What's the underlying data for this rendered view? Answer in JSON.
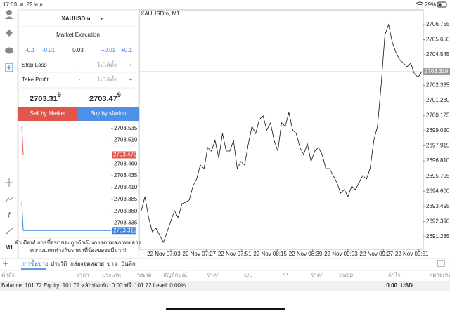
{
  "status_bar": {
    "time": "17:03",
    "date": "ศ. 22 พ.ย.",
    "battery": "29%"
  },
  "sidebar": {
    "timeframe": "M1"
  },
  "order_panel": {
    "symbol": "XAUUSDm",
    "execution": "Market Execution",
    "volume_steps": [
      "-0.1",
      "-0.01",
      "0.03",
      "+0.01",
      "+0.1"
    ],
    "stop_loss": {
      "label": "Stop Loss",
      "minus": "-",
      "value": "ไม่ได้ตั้ง",
      "plus": "+"
    },
    "take_profit": {
      "label": "Take Profit",
      "minus": "-",
      "value": "ไม่ได้ตั้ง",
      "plus": "+"
    },
    "bid": {
      "main": "2703.31",
      "last": "9"
    },
    "ask": {
      "main": "2703.47",
      "last": "9"
    },
    "sell_button": "Sell by Market",
    "buy_button": "Buy by Market",
    "warning": [
      "คำเตือน! การซื้อขายจะถูกดำเนินการตามสภาพตลาด",
      "ความแตกต่างกับราคาที่ร้องขอจะมีมาก!"
    ]
  },
  "chart_data": [
    {
      "type": "line",
      "title": "XAUUSDm, M1",
      "color": "#111111",
      "x": [
        -20,
        -17.5,
        -15,
        -12.5,
        -10,
        -7.5,
        -5,
        -2.5,
        0,
        2.5,
        5,
        7.5,
        10,
        12.5,
        15,
        17.5,
        20,
        22.5,
        25,
        27.5,
        30,
        32.5,
        35,
        37.5,
        40,
        42.5,
        45,
        47.5,
        50,
        52.5,
        55,
        57.5,
        60,
        62.5,
        65,
        67.5,
        70,
        72.5,
        75,
        77.5,
        80,
        82.5,
        85,
        87.5,
        90,
        92.5,
        95,
        97.5,
        100,
        102.5,
        105,
        107.5,
        110,
        112.5,
        115,
        117.5,
        120,
        122.5,
        125,
        127.5,
        130,
        132.5,
        135,
        137.5,
        140,
        142.5,
        145,
        147.5,
        150,
        152.5,
        155,
        157.5,
        160,
        162.5,
        165,
        167.5,
        170
      ],
      "values": [
        2693.18,
        2694.2,
        2692.67,
        2691.64,
        2691.9,
        2691.39,
        2690.87,
        2691.64,
        2692.41,
        2693.18,
        2692.67,
        2693.69,
        2693.79,
        2693.95,
        2694.97,
        2695.49,
        2696.51,
        2696.25,
        2697.79,
        2697.53,
        2698.3,
        2697.02,
        2698.81,
        2697.53,
        2697.53,
        2698.3,
        2696.25,
        2696.77,
        2696.51,
        2698.05,
        2699.33,
        2698.81,
        2699.84,
        2700.1,
        2699.07,
        2699.58,
        2698.3,
        2697.53,
        2699.58,
        2699.33,
        2700.35,
        2699.07,
        2698.81,
        2697.79,
        2697.28,
        2698.05,
        2696.77,
        2697.53,
        2697.79,
        2697.28,
        2696.25,
        2696.25,
        2695.74,
        2695.23,
        2694.46,
        2694.72,
        2694.2,
        2694.97,
        2694.72,
        2695.23,
        2695.74,
        2695.49,
        2696.25,
        2698.3,
        2699.33,
        2702.4,
        2705.99,
        2706.76,
        2705.47,
        2704.71,
        2704.19,
        2703.94,
        2703.68,
        2703.94,
        2703.17,
        2702.91,
        2703.319
      ],
      "xlim": [
        -21.4,
        171
      ],
      "xticks": [
        {
          "value": 0,
          "label": "22 Nov 07:03"
        },
        {
          "value": 24,
          "label": "22 Nov 07:27"
        },
        {
          "value": 48,
          "label": "22 Nov 07:51"
        },
        {
          "value": 72,
          "label": "22 Nov 08:15"
        },
        {
          "value": 96,
          "label": "22 Nov 08:39"
        },
        {
          "value": 120,
          "label": "22 Nov 09:03"
        },
        {
          "value": 144,
          "label": "22 Nov 09:27"
        },
        {
          "value": 168,
          "label": "22 Nov 09:51"
        }
      ],
      "ylim": [
        2690.36,
        2707.83
      ],
      "yticks": [
        2706.755,
        {
          "value": 2705.65,
          "label": "2705.650"
        },
        2704.545,
        2702.335,
        {
          "value": 2701.23,
          "label": "2701.230"
        },
        2700.125,
        {
          "value": 2699.02,
          "label": "2699.020"
        },
        2697.915,
        {
          "value": 2696.81,
          "label": "2696.810"
        },
        2695.705,
        {
          "value": 2694.6,
          "label": "2694.600"
        },
        2693.495,
        {
          "value": 2692.39,
          "label": "2692.390"
        },
        2691.285
      ]
    },
    {
      "type": "line",
      "series": [
        {
          "color": "#e0564c",
          "values": [
            2703.539,
            2703.479
          ]
        },
        {
          "color": "#3d7fe0",
          "values": [
            2703.38,
            2703.319
          ]
        }
      ],
      "ylim": [
        2703.309,
        2703.551
      ],
      "yticks": [
        2703.535,
        {
          "value": 2703.51,
          "label": "2703.510"
        },
        {
          "value": 2703.46,
          "label": "2703.460"
        },
        2703.435,
        {
          "value": 2703.41,
          "label": "2703.410"
        },
        2703.385,
        {
          "value": 2703.36,
          "label": "2703.360"
        },
        2703.335
      ]
    }
  ],
  "trade_panel": {
    "tabs": [
      "การซื้อขาย",
      "ประวัติ",
      "กล่องจดหมาย",
      "ข่าว",
      "บันทึก"
    ],
    "columns": [
      "คำสั่ง",
      "เวลา",
      "ประเภท",
      "ขนาด",
      "สัญลักษณ์",
      "ราคา",
      "S/L",
      "T/P",
      "ราคา",
      "Swap",
      "กำไร",
      "หมายเหตุ"
    ],
    "summary": "Balance: 101.72 Equity: 101.72 หลักประกัน: 0.00 ฟรี: 101.72 Level: 0.00%",
    "profit": "0.00",
    "currency": "USD"
  }
}
